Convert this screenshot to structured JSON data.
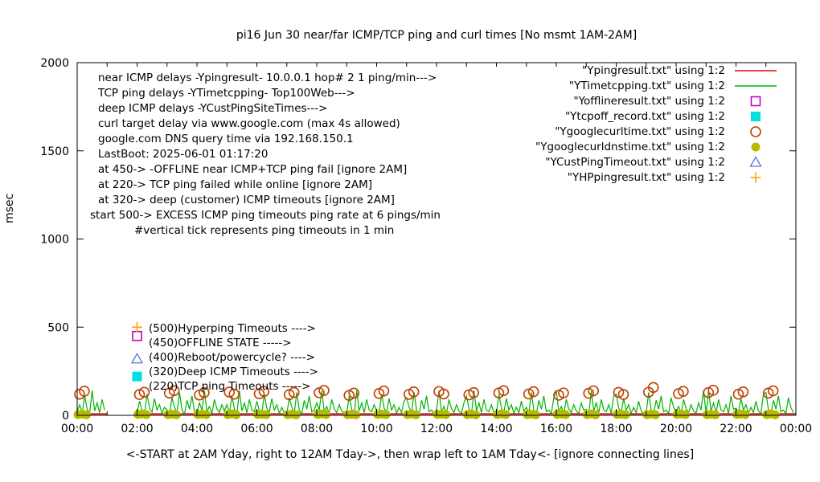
{
  "chart_data": {
    "type": "line",
    "title": "pi16 Jun 30  near/far ICMP/TCP ping and curl times [No msmt 1AM-2AM]",
    "ylabel": "msec",
    "xlabel": "<-START at 2AM Yday, right to 12AM Tday->, then wrap left to 1AM Tday<- [ignore connecting lines]",
    "ylim": [
      0,
      2000
    ],
    "xlim_hours": [
      0,
      24
    ],
    "gap_hours": [
      1,
      2
    ],
    "grid": false,
    "legend_position": "top-right",
    "x_ticks": [
      "00:00",
      "02:00",
      "04:00",
      "06:00",
      "08:00",
      "10:00",
      "12:00",
      "14:00",
      "16:00",
      "18:00",
      "20:00",
      "22:00",
      "00:00"
    ],
    "y_ticks": [
      "0",
      "500",
      "1000",
      "1500",
      "2000"
    ],
    "y_tick_values": [
      0,
      500,
      1000,
      1500,
      2000
    ],
    "annotations": {
      "top_left": [
        "near ICMP delays -Ypingresult- 10.0.0.1 hop# 2 1 ping/min--->",
        "TCP ping delays -YTimetcpping- Top100Web--->",
        "deep ICMP delays -YCustPingSiteTimes--->",
        "curl target delay via www.google.com (max 4s allowed)",
        "google.com DNS query time via 192.168.150.1",
        "LastBoot: 2025-06-01 01:17:20",
        "at 450-> -OFFLINE near ICMP+TCP ping fail [ignore 2AM]",
        "at 220-> TCP ping failed while online [ignore 2AM]",
        "at 320-> deep (customer) ICMP timeouts [ignore 2AM]",
        "start 500-> EXCESS ICMP ping timeouts ping rate at 6 pings/min",
        "#vertical tick represents ping timeouts in 1 min"
      ],
      "mid_left": [
        {
          "text": "(500)Hyperping Timeouts ---->",
          "at_msec": 500
        },
        {
          "text": "(450)OFFLINE STATE ----->",
          "at_msec": 450
        },
        {
          "text": "(400)Reboot/powercycle? ---->",
          "at_msec": 400
        },
        {
          "text": "(320)Deep ICMP Timeouts ---->",
          "at_msec": 320
        },
        {
          "text": "(220)TCP ping Timeouts ----->",
          "at_msec": 220
        }
      ]
    },
    "series": [
      {
        "name": "Ypingresult",
        "legend_label": "\"Ypingresult.txt\" using 1:2",
        "color": "#ee0000",
        "marker": "line",
        "style": "flat-line",
        "value_msec": 8,
        "segments_hours": [
          [
            0,
            1
          ],
          [
            2,
            24
          ]
        ]
      },
      {
        "name": "YTimetcpping",
        "legend_label": "\"YTimetcpping.txt\" using 1:2",
        "color": "#00b400",
        "marker": "line",
        "style": "grass",
        "samples_per_hour": 12,
        "heights_by_hour": [
          [
            20,
            60,
            12,
            110,
            35,
            9,
            140,
            25,
            70,
            15,
            90,
            30
          ],
          [
            null,
            null,
            null,
            null,
            null,
            null,
            null,
            null,
            null,
            null,
            null,
            null
          ],
          [
            15,
            80,
            25,
            10,
            120,
            40,
            18,
            95,
            30,
            60,
            12,
            45
          ],
          [
            30,
            10,
            100,
            45,
            15,
            130,
            28,
            8,
            85,
            35,
            110,
            20
          ],
          [
            12,
            70,
            30,
            140,
            20,
            50,
            10,
            90,
            38,
            15,
            60,
            25
          ],
          [
            60,
            12,
            110,
            35,
            9,
            140,
            25,
            70,
            15,
            90,
            30,
            20
          ],
          [
            80,
            25,
            10,
            120,
            40,
            18,
            95,
            30,
            60,
            12,
            45,
            15
          ],
          [
            10,
            100,
            45,
            15,
            130,
            28,
            8,
            85,
            35,
            110,
            20,
            30
          ],
          [
            70,
            30,
            140,
            20,
            50,
            10,
            90,
            38,
            15,
            60,
            25,
            12
          ],
          [
            12,
            110,
            35,
            9,
            140,
            25,
            70,
            15,
            90,
            30,
            20,
            60
          ],
          [
            25,
            10,
            120,
            40,
            18,
            95,
            30,
            60,
            12,
            45,
            15,
            80
          ],
          [
            100,
            45,
            15,
            130,
            28,
            8,
            85,
            35,
            110,
            20,
            30,
            10
          ],
          [
            30,
            140,
            20,
            50,
            10,
            90,
            38,
            15,
            60,
            25,
            12,
            70
          ],
          [
            110,
            35,
            9,
            140,
            25,
            70,
            15,
            90,
            30,
            20,
            60,
            12
          ],
          [
            10,
            120,
            40,
            18,
            95,
            30,
            60,
            12,
            45,
            15,
            80,
            25
          ],
          [
            45,
            15,
            130,
            28,
            8,
            85,
            35,
            110,
            20,
            30,
            10,
            100
          ],
          [
            140,
            20,
            50,
            10,
            90,
            38,
            15,
            60,
            25,
            12,
            70,
            30
          ],
          [
            35,
            9,
            140,
            25,
            70,
            15,
            90,
            30,
            20,
            60,
            12,
            110
          ],
          [
            120,
            40,
            18,
            95,
            30,
            60,
            12,
            45,
            15,
            80,
            25,
            10
          ],
          [
            15,
            130,
            28,
            8,
            85,
            35,
            110,
            20,
            30,
            10,
            100,
            45
          ],
          [
            20,
            50,
            10,
            90,
            38,
            15,
            60,
            25,
            12,
            70,
            30,
            140
          ],
          [
            9,
            140,
            25,
            70,
            15,
            90,
            30,
            20,
            60,
            12,
            110,
            35
          ],
          [
            40,
            18,
            95,
            30,
            60,
            12,
            45,
            15,
            80,
            25,
            10,
            120
          ],
          [
            130,
            28,
            8,
            85,
            35,
            110,
            20,
            30,
            10,
            100,
            45,
            15
          ]
        ]
      },
      {
        "name": "Yofflineresult",
        "legend_label": "\"Yofflineresult.txt\" using 1:2",
        "color": "#c400c4",
        "marker": "open-square",
        "style": "points",
        "points": [
          [
            2,
            450
          ]
        ]
      },
      {
        "name": "Ytcpoff_record",
        "legend_label": "\"Ytcpoff_record.txt\" using 1:2",
        "color": "#00e0e0",
        "marker": "filled-square",
        "style": "points",
        "points": [
          [
            2,
            220
          ]
        ]
      },
      {
        "name": "Ygooglecurltime",
        "legend_label": "\"Ygooglecurltime.txt\" using 1:2",
        "color": "#c04000",
        "marker": "open-circle",
        "style": "clusters",
        "cluster_hours": [
          0,
          2,
          3,
          4,
          5,
          6,
          7,
          8,
          9,
          10,
          11,
          12,
          13,
          14,
          15,
          16,
          17,
          18,
          19,
          20,
          21,
          22,
          23
        ],
        "cluster_offsets": [
          0.08,
          0.24
        ],
        "cluster_values": [
          [
            120,
            137
          ],
          [
            118,
            131
          ],
          [
            126,
            140
          ],
          [
            115,
            129
          ],
          [
            132,
            120
          ],
          [
            122,
            136
          ],
          [
            117,
            130
          ],
          [
            128,
            141
          ],
          [
            113,
            126
          ],
          [
            124,
            138
          ],
          [
            119,
            133
          ],
          [
            135,
            121
          ],
          [
            116,
            129
          ],
          [
            127,
            140
          ],
          [
            121,
            134
          ],
          [
            114,
            127
          ],
          [
            125,
            139
          ],
          [
            130,
            118
          ],
          [
            131,
            158
          ],
          [
            123,
            136
          ],
          [
            129,
            142
          ],
          [
            120,
            133
          ],
          [
            126,
            139
          ]
        ]
      },
      {
        "name": "Ygooglecurldnstime",
        "legend_label": "\"Ygooglecurldnstime.txt\" using 1:2",
        "color": "#b8b800",
        "marker": "filled-circle",
        "style": "clusters",
        "cluster_hours": [
          0,
          2,
          3,
          4,
          5,
          6,
          7,
          8,
          9,
          10,
          11,
          12,
          13,
          14,
          15,
          16,
          17,
          18,
          19,
          20,
          21,
          22,
          23
        ],
        "cluster_offsets": [
          0.03,
          0.17,
          0.31
        ],
        "cluster_values": [
          [
            4,
            7,
            3
          ],
          [
            5,
            8,
            4
          ],
          [
            4,
            6,
            3
          ],
          [
            5,
            7,
            4
          ],
          [
            4,
            8,
            3
          ],
          [
            5,
            6,
            4
          ],
          [
            4,
            7,
            3
          ],
          [
            5,
            8,
            4
          ],
          [
            4,
            6,
            3
          ],
          [
            5,
            7,
            4
          ],
          [
            4,
            8,
            3
          ],
          [
            5,
            6,
            4
          ],
          [
            4,
            7,
            3
          ],
          [
            5,
            8,
            4
          ],
          [
            4,
            6,
            3
          ],
          [
            5,
            7,
            4
          ],
          [
            4,
            8,
            3
          ],
          [
            5,
            6,
            4
          ],
          [
            4,
            7,
            3
          ],
          [
            5,
            8,
            4
          ],
          [
            4,
            6,
            3
          ],
          [
            5,
            7,
            4
          ],
          [
            4,
            8,
            3
          ]
        ]
      },
      {
        "name": "YCustPingTimeout",
        "legend_label": "\"YCustPingTimeout.txt\" using 1:2",
        "color": "#5577dd",
        "marker": "open-triangle",
        "style": "points",
        "points": [
          [
            2,
            320
          ]
        ]
      },
      {
        "name": "YHPpingresult",
        "legend_label": "\"YHPpingresult.txt\" using 1:2",
        "color": "#ffa500",
        "marker": "plus",
        "style": "points",
        "points": [
          [
            2,
            500
          ]
        ]
      }
    ]
  }
}
